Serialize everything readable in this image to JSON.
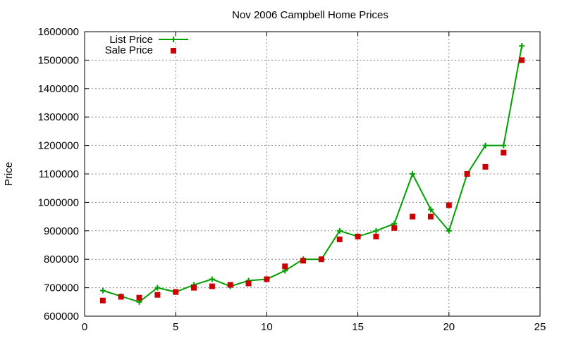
{
  "chart_data": {
    "type": "line",
    "title": "Nov 2006 Campbell Home Prices",
    "xlabel": "",
    "ylabel": "Price",
    "xlim": [
      0,
      25
    ],
    "ylim": [
      600000,
      1600000
    ],
    "xticks": [
      0,
      5,
      10,
      15,
      20,
      25
    ],
    "yticks": [
      600000,
      700000,
      800000,
      900000,
      1000000,
      1100000,
      1200000,
      1300000,
      1400000,
      1500000,
      1600000
    ],
    "grid": true,
    "legend_position": "top-left",
    "series": [
      {
        "name": "List Price",
        "style": "line-with-plus-markers",
        "color": "#00a000",
        "x": [
          1,
          2,
          3,
          4,
          5,
          6,
          7,
          8,
          9,
          10,
          11,
          12,
          13,
          14,
          15,
          16,
          17,
          18,
          19,
          20,
          21,
          22,
          23,
          24
        ],
        "y": [
          690000,
          670000,
          650000,
          700000,
          685000,
          710000,
          730000,
          705000,
          725000,
          730000,
          760000,
          800000,
          800000,
          900000,
          880000,
          900000,
          925000,
          1100000,
          975000,
          900000,
          1100000,
          1200000,
          1200000,
          1550000
        ]
      },
      {
        "name": "Sale Price",
        "style": "square-markers",
        "color": "#cc0000",
        "x": [
          1,
          2,
          3,
          4,
          5,
          6,
          7,
          8,
          9,
          10,
          11,
          12,
          13,
          14,
          15,
          16,
          17,
          18,
          19,
          20,
          21,
          22,
          23,
          24
        ],
        "y": [
          655000,
          668000,
          665000,
          675000,
          685000,
          700000,
          705000,
          710000,
          715000,
          730000,
          775000,
          795000,
          800000,
          870000,
          880000,
          880000,
          910000,
          950000,
          950000,
          990000,
          1100000,
          1125000,
          1175000,
          1500000
        ]
      }
    ]
  }
}
